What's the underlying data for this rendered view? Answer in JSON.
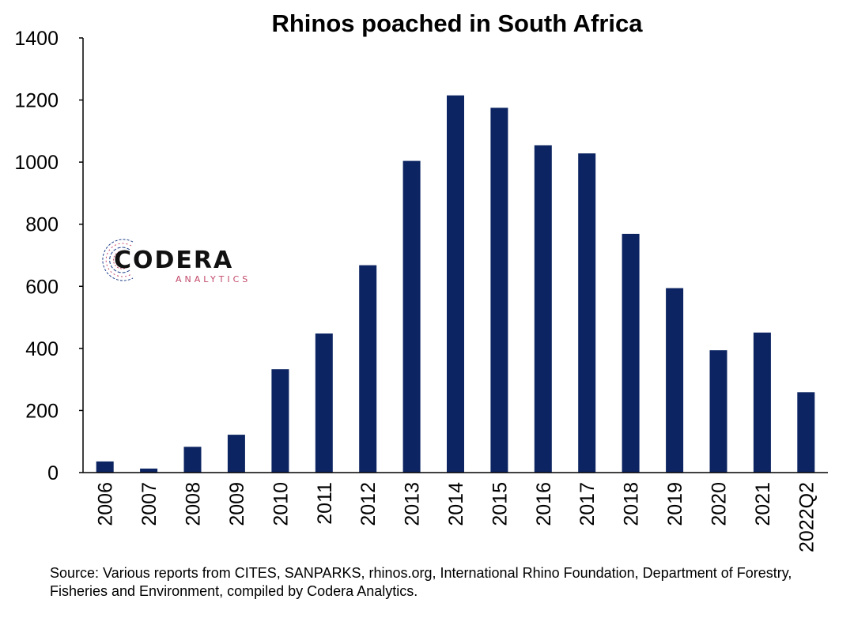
{
  "colors": {
    "bar": "#0c2461",
    "axis": "#000000",
    "logo_blue": "#1f3f8a",
    "logo_red": "#c2496a"
  },
  "logo": {
    "name": "CODERA",
    "tagline": "ANALYTICS"
  },
  "source_text": "Source: Various reports from CITES, SANPARKS, rhinos.org, International Rhino Foundation, Department of Forestry, Fisheries and Environment, compiled by Codera Analytics.",
  "chart_data": {
    "type": "bar",
    "title": "Rhinos poached in South Africa",
    "xlabel": "",
    "ylabel": "",
    "categories": [
      "2006",
      "2007",
      "2008",
      "2009",
      "2010",
      "2011",
      "2012",
      "2013",
      "2014",
      "2015",
      "2016",
      "2017",
      "2018",
      "2019",
      "2020",
      "2021",
      "2022Q2"
    ],
    "values": [
      36,
      13,
      83,
      122,
      333,
      448,
      668,
      1004,
      1215,
      1175,
      1054,
      1028,
      769,
      594,
      394,
      451,
      259
    ],
    "ylim": [
      0,
      1400
    ],
    "yticks": [
      0,
      200,
      400,
      600,
      800,
      1000,
      1200,
      1400
    ],
    "grid": false,
    "legend": "none"
  }
}
